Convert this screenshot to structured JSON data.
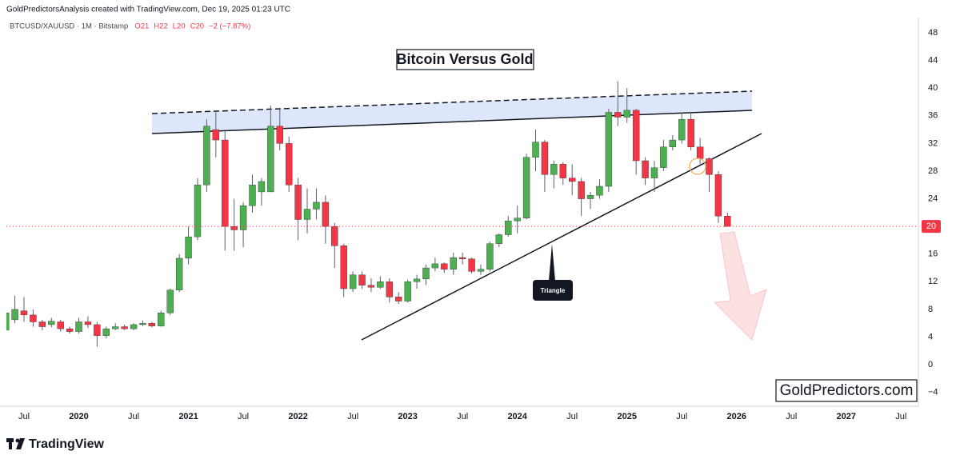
{
  "header": "GoldPredictorsAnalysis created with TradingView.com, Dec 19, 2025 01:23 UTC",
  "legend": {
    "symbol": "BTCUSD/XAUUSD · 1M · Bitstamp",
    "values": [
      "O21",
      "H22",
      "L20",
      "C20",
      "−2 (−7.87%)"
    ]
  },
  "footer": "TradingView",
  "chart_data": {
    "type": "candlestick",
    "title": "Bitcoin Versus Gold",
    "annotation": "Triangle",
    "watermark": "GoldPredictors.com",
    "up_color": "#4caf50",
    "down_color": "#f23645",
    "last_price": 20,
    "x": [
      "2019-05",
      "2019-06",
      "2019-07",
      "2019-08",
      "2019-09",
      "2019-10",
      "2019-11",
      "2019-12",
      "2020-01",
      "2020-02",
      "2020-03",
      "2020-04",
      "2020-05",
      "2020-06",
      "2020-07",
      "2020-08",
      "2020-09",
      "2020-10",
      "2020-11",
      "2020-12",
      "2021-01",
      "2021-02",
      "2021-03",
      "2021-04",
      "2021-05",
      "2021-06",
      "2021-07",
      "2021-08",
      "2021-09",
      "2021-10",
      "2021-11",
      "2021-12",
      "2022-01",
      "2022-02",
      "2022-03",
      "2022-04",
      "2022-05",
      "2022-06",
      "2022-07",
      "2022-08",
      "2022-09",
      "2022-10",
      "2022-11",
      "2022-12",
      "2023-01",
      "2023-02",
      "2023-03",
      "2023-04",
      "2023-05",
      "2023-06",
      "2023-07",
      "2023-08",
      "2023-09",
      "2023-10",
      "2023-11",
      "2023-12",
      "2024-01",
      "2024-02",
      "2024-03",
      "2024-04",
      "2024-05",
      "2024-06",
      "2024-07",
      "2024-08",
      "2024-09",
      "2024-10",
      "2024-11",
      "2024-12",
      "2025-01",
      "2025-02",
      "2025-03",
      "2025-04",
      "2025-05",
      "2025-06",
      "2025-07",
      "2025-08",
      "2025-09",
      "2025-10",
      "2025-11",
      "2025-12"
    ],
    "open": [
      5,
      6.5,
      7.8,
      7.2,
      6.2,
      5.8,
      6.2,
      5.2,
      4.8,
      6.2,
      5.8,
      4.2,
      5.2,
      5.5,
      5.2,
      5.8,
      6,
      5.6,
      7.5,
      10.8,
      15.4,
      18.5,
      26,
      34,
      32.5,
      20,
      19.5,
      23,
      25,
      25,
      34.5,
      32,
      26,
      21,
      22.5,
      23.5,
      20,
      17.2,
      11,
      13,
      11.5,
      11.2,
      12,
      9.8,
      9.2,
      12,
      12.4,
      14,
      14.6,
      13.8,
      15.5,
      15.3,
      13.5,
      13.8,
      17.5,
      18.8,
      20.8,
      21.2,
      30,
      32.2,
      27.5,
      29,
      27,
      26.5,
      24,
      24.5,
      25.8,
      36.5,
      35.8,
      36.8,
      29.5,
      27,
      28.5,
      31.5,
      32.5,
      35.5,
      31.5,
      29.8,
      27.5,
      21.5
    ],
    "high": [
      8,
      10,
      9.8,
      8,
      6.5,
      6.8,
      6.5,
      5.5,
      6.8,
      7,
      6.2,
      5.5,
      6,
      5.8,
      6,
      6.4,
      6.2,
      7.8,
      11,
      16,
      20,
      27,
      35.5,
      36.5,
      34,
      24,
      23.5,
      27.5,
      27,
      37.5,
      37,
      33,
      27,
      25.5,
      25.5,
      24.5,
      20.5,
      17.5,
      13.5,
      13.5,
      12.5,
      12.8,
      12.5,
      10.5,
      12.3,
      13,
      14.5,
      15.5,
      14.8,
      16.2,
      16.2,
      15.5,
      14.5,
      17.8,
      19,
      21.5,
      23,
      30.5,
      34,
      32.5,
      29.5,
      29.3,
      29,
      27,
      25,
      26.8,
      37,
      41,
      40,
      37,
      30,
      29.5,
      32.5,
      33.2,
      36.5,
      36.5,
      32.8,
      30,
      28,
      22
    ],
    "low": [
      4.5,
      6,
      6.2,
      5.5,
      5,
      5.4,
      4.8,
      4.5,
      4.5,
      5.3,
      2.6,
      3.8,
      5,
      5,
      5,
      5.6,
      5.4,
      5.5,
      7.2,
      10.5,
      14.5,
      18,
      25,
      30,
      16.5,
      16.5,
      17,
      22,
      23,
      25,
      31,
      25,
      18,
      19,
      21,
      17.5,
      14,
      9.8,
      10.5,
      11,
      10.5,
      11,
      9,
      8.8,
      9,
      11,
      11.5,
      13.5,
      13.3,
      13,
      14.5,
      13.2,
      13,
      13.5,
      17,
      18.5,
      19,
      21,
      28,
      25,
      25.5,
      26,
      24.5,
      21.5,
      22.5,
      24,
      25,
      34.5,
      35,
      27.5,
      26,
      25,
      28,
      31,
      32,
      31,
      29,
      25,
      20.5,
      20
    ],
    "close": [
      7.5,
      8,
      7.2,
      6.2,
      5.5,
      6.3,
      5.2,
      4.8,
      6.2,
      5.8,
      4.2,
      5.2,
      5.5,
      5.2,
      5.8,
      6,
      5.6,
      7.5,
      10.8,
      15.4,
      18.5,
      26,
      34.5,
      32.5,
      20,
      19.5,
      23,
      26,
      26.5,
      34.5,
      32,
      26,
      21,
      22.5,
      23.5,
      20,
      17.2,
      11,
      13,
      11.5,
      11.2,
      12,
      9.8,
      9.2,
      12,
      12.4,
      14,
      14.6,
      13.8,
      15.5,
      15.3,
      13.5,
      13.8,
      17.5,
      18.8,
      20.8,
      21.2,
      30,
      32.2,
      27.5,
      29,
      27,
      26.5,
      24,
      24.5,
      25.8,
      36.5,
      35.8,
      36.8,
      29.5,
      27,
      28.5,
      31.5,
      32.5,
      35.5,
      31.5,
      29.8,
      27.5,
      21.5,
      20
    ],
    "ylim": [
      -6,
      50.2
    ],
    "yticks": [
      {
        "value": -4,
        "label": "−4"
      },
      0,
      4,
      8,
      12,
      16,
      20,
      24,
      28,
      32,
      36,
      40,
      44,
      48
    ],
    "xticks": [
      {
        "value": "2019-07",
        "label": "Jul"
      },
      {
        "value": "2020-01",
        "label": "2020"
      },
      {
        "value": "2020-07",
        "label": "Jul"
      },
      {
        "value": "2021-01",
        "label": "2021"
      },
      {
        "value": "2021-07",
        "label": "Jul"
      },
      {
        "value": "2022-01",
        "label": "2022"
      },
      {
        "value": "2022-07",
        "label": "Jul"
      },
      {
        "value": "2023-01",
        "label": "2023"
      },
      {
        "value": "2023-07",
        "label": "Jul"
      },
      {
        "value": "2024-01",
        "label": "2024"
      },
      {
        "value": "2024-07",
        "label": "Jul"
      },
      {
        "value": "2025-01",
        "label": "2025"
      },
      {
        "value": "2025-07",
        "label": "Jul"
      },
      {
        "value": "2026-01",
        "label": "2026"
      },
      {
        "value": "2026-07",
        "label": "Jul"
      },
      {
        "value": "2027-01",
        "label": "2027"
      },
      {
        "value": "2027-07",
        "label": "Jul"
      }
    ]
  }
}
